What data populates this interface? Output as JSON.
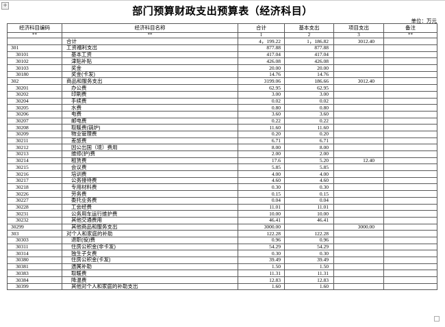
{
  "title": "部门预算财政支出预算表（经济科目）",
  "unit_label": "单位：万元",
  "handles": {
    "move_glyph": "+"
  },
  "colors": {
    "border": "#555555",
    "text": "#000000",
    "background": "#ffffff"
  },
  "table": {
    "headers": [
      "经济科目编码",
      "经济科目名称",
      "合计",
      "基本支出",
      "项目支出",
      "备注"
    ],
    "subheaders": [
      "**",
      "**",
      "1",
      "2",
      "3",
      "**"
    ],
    "rows": [
      {
        "code": "",
        "name": "合计",
        "total": "4，199.22",
        "basic": "1，186.82",
        "project": "3012.40",
        "note": "",
        "code_indent": 1,
        "name_indent": 1
      },
      {
        "code": "301",
        "name": "工资福利支出",
        "total": "877.88",
        "basic": "877.88",
        "project": "",
        "note": "",
        "code_indent": 1,
        "name_indent": 1
      },
      {
        "code": "30101",
        "name": "基本工资",
        "total": "417.04",
        "basic": "417.04",
        "project": "",
        "note": "",
        "code_indent": 2,
        "name_indent": 2
      },
      {
        "code": "30102",
        "name": "津贴补贴",
        "total": "426.08",
        "basic": "426.08",
        "project": "",
        "note": "",
        "code_indent": 2,
        "name_indent": 2
      },
      {
        "code": "30103",
        "name": "奖金",
        "total": "20.00",
        "basic": "20.00",
        "project": "",
        "note": "",
        "code_indent": 2,
        "name_indent": 2
      },
      {
        "code": "30180",
        "name": "奖金(卡发)",
        "total": "14.76",
        "basic": "14.76",
        "project": "",
        "note": "",
        "code_indent": 2,
        "name_indent": 2
      },
      {
        "code": "302",
        "name": "商品和服务支出",
        "total": "3199.06",
        "basic": "186.66",
        "project": "3012.40",
        "note": "",
        "code_indent": 1,
        "name_indent": 1
      },
      {
        "code": "30201",
        "name": "办公费",
        "total": "62.95",
        "basic": "62.95",
        "project": "",
        "note": "",
        "code_indent": 2,
        "name_indent": 2
      },
      {
        "code": "30202",
        "name": "印刷费",
        "total": "3.00",
        "basic": "3.00",
        "project": "",
        "note": "",
        "code_indent": 2,
        "name_indent": 2
      },
      {
        "code": "30204",
        "name": "手续费",
        "total": "0.02",
        "basic": "0.02",
        "project": "",
        "note": "",
        "code_indent": 2,
        "name_indent": 2
      },
      {
        "code": "30205",
        "name": "水费",
        "total": "0.80",
        "basic": "0.80",
        "project": "",
        "note": "",
        "code_indent": 2,
        "name_indent": 2
      },
      {
        "code": "30206",
        "name": "电费",
        "total": "3.60",
        "basic": "3.60",
        "project": "",
        "note": "",
        "code_indent": 2,
        "name_indent": 2
      },
      {
        "code": "30207",
        "name": "邮电费",
        "total": "0.22",
        "basic": "0.22",
        "project": "",
        "note": "",
        "code_indent": 2,
        "name_indent": 2
      },
      {
        "code": "30208",
        "name": "取暖费(锅炉)",
        "total": "11.60",
        "basic": "11.60",
        "project": "",
        "note": "",
        "code_indent": 2,
        "name_indent": 2
      },
      {
        "code": "30209",
        "name": "物业管理费",
        "total": "0.20",
        "basic": "0.20",
        "project": "",
        "note": "",
        "code_indent": 2,
        "name_indent": 2
      },
      {
        "code": "30211",
        "name": "差旅费",
        "total": "6.71",
        "basic": "6.71",
        "project": "",
        "note": "",
        "code_indent": 2,
        "name_indent": 2
      },
      {
        "code": "30212",
        "name": "因公出国（境）费用",
        "total": "8.00",
        "basic": "8.00",
        "project": "",
        "note": "",
        "code_indent": 2,
        "name_indent": 2
      },
      {
        "code": "30213",
        "name": "维修(护)费",
        "total": "2.00",
        "basic": "2.00",
        "project": "",
        "note": "",
        "code_indent": 2,
        "name_indent": 2
      },
      {
        "code": "30214",
        "name": "租赁费",
        "total": "17.6",
        "basic": "5.20",
        "project": "12.40",
        "note": "",
        "code_indent": 2,
        "name_indent": 2
      },
      {
        "code": "30215",
        "name": "会议费",
        "total": "5.85",
        "basic": "5.85",
        "project": "",
        "note": "",
        "code_indent": 2,
        "name_indent": 2
      },
      {
        "code": "30216",
        "name": "培训费",
        "total": "4.00",
        "basic": "4.00",
        "project": "",
        "note": "",
        "code_indent": 2,
        "name_indent": 2
      },
      {
        "code": "30217",
        "name": "公务接待费",
        "total": "4.60",
        "basic": "4.60",
        "project": "",
        "note": "",
        "code_indent": 2,
        "name_indent": 2
      },
      {
        "code": "30218",
        "name": "专用材料费",
        "total": "0.30",
        "basic": "0.30",
        "project": "",
        "note": "",
        "code_indent": 2,
        "name_indent": 2
      },
      {
        "code": "30226",
        "name": "劳务费",
        "total": "0.15",
        "basic": "0.15",
        "project": "",
        "note": "",
        "code_indent": 2,
        "name_indent": 2
      },
      {
        "code": "30227",
        "name": "委托业务费",
        "total": "0.04",
        "basic": "0.04",
        "project": "",
        "note": "",
        "code_indent": 2,
        "name_indent": 2
      },
      {
        "code": "30228",
        "name": "工会经费",
        "total": "11.01",
        "basic": "11.01",
        "project": "",
        "note": "",
        "code_indent": 2,
        "name_indent": 2
      },
      {
        "code": "30231",
        "name": "公务用车运行维护费",
        "total": "10.00",
        "basic": "10.00",
        "project": "",
        "note": "",
        "code_indent": 2,
        "name_indent": 2
      },
      {
        "code": "30232",
        "name": "其他交通费用",
        "total": "46.41",
        "basic": "46.41",
        "project": "",
        "note": "",
        "code_indent": 2,
        "name_indent": 2
      },
      {
        "code": "30299",
        "name": "其他商品和服务支出",
        "total": "3000.00",
        "basic": "",
        "project": "3000.00",
        "note": "",
        "code_indent": 1,
        "name_indent": 2
      },
      {
        "code": "303",
        "name": "对个人和家庭的补助",
        "total": "122.28",
        "basic": "122.28",
        "project": "",
        "note": "",
        "code_indent": 1,
        "name_indent": 1
      },
      {
        "code": "30303",
        "name": "退职(役)费",
        "total": "0.96",
        "basic": "0.96",
        "project": "",
        "note": "",
        "code_indent": 2,
        "name_indent": 2
      },
      {
        "code": "30311",
        "name": "住房公积金(非卡发)",
        "total": "54.29",
        "basic": "54.29",
        "project": "",
        "note": "",
        "code_indent": 2,
        "name_indent": 2
      },
      {
        "code": "30314",
        "name": "独生子女费",
        "total": "0.30",
        "basic": "0.30",
        "project": "",
        "note": "",
        "code_indent": 2,
        "name_indent": 2
      },
      {
        "code": "30380",
        "name": "住房公积金(卡发)",
        "total": "39.49",
        "basic": "39.49",
        "project": "",
        "note": "",
        "code_indent": 2,
        "name_indent": 2
      },
      {
        "code": "30381",
        "name": "遗属补助",
        "total": "1.50",
        "basic": "1.50",
        "project": "",
        "note": "",
        "code_indent": 2,
        "name_indent": 2
      },
      {
        "code": "30383",
        "name": "取暖费",
        "total": "11.31",
        "basic": "11.31",
        "project": "",
        "note": "",
        "code_indent": 2,
        "name_indent": 2
      },
      {
        "code": "30384",
        "name": "降温费",
        "total": "12.83",
        "basic": "12.83",
        "project": "",
        "note": "",
        "code_indent": 2,
        "name_indent": 2
      },
      {
        "code": "30399",
        "name": "其他对个人和家庭的补助支出",
        "total": "1.60",
        "basic": "1.60",
        "project": "",
        "note": "",
        "code_indent": 2,
        "name_indent": 2
      }
    ]
  }
}
